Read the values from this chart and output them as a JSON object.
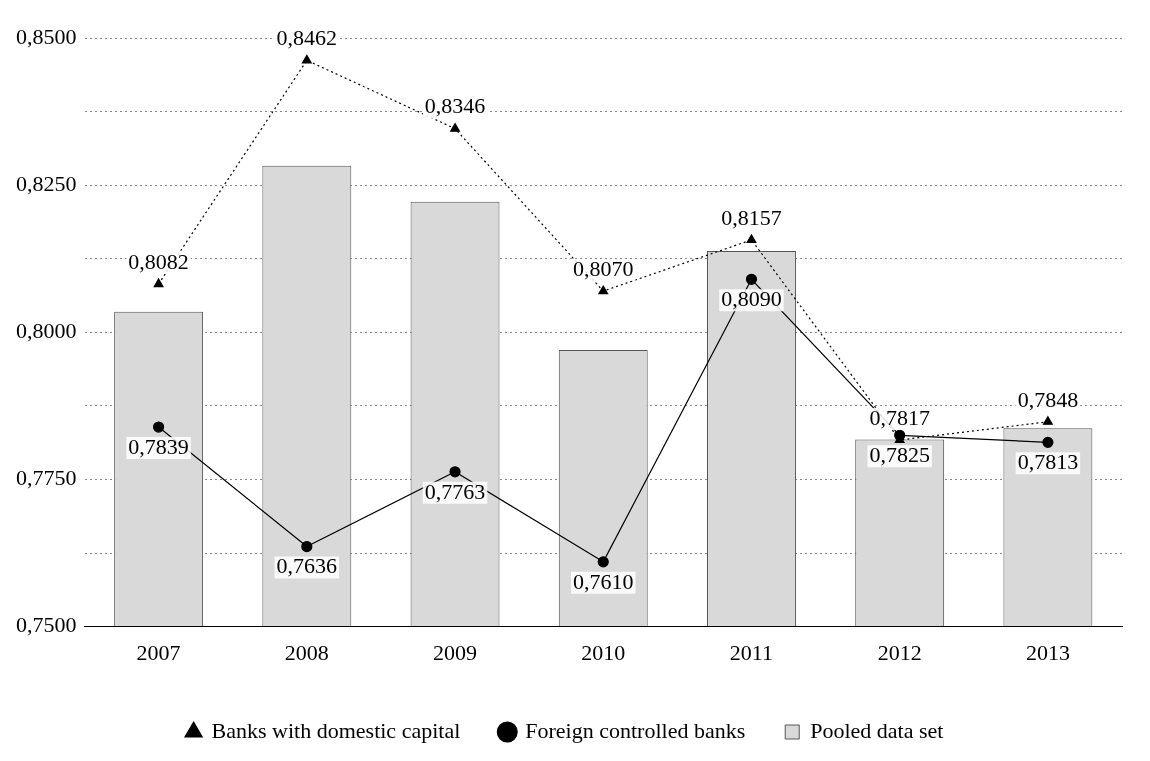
{
  "chart_data": {
    "type": "bar",
    "categories": [
      "2007",
      "2008",
      "2009",
      "2010",
      "2011",
      "2012",
      "2013"
    ],
    "series": [
      {
        "name": "Banks with domestic capital",
        "type": "line",
        "color": "#000000",
        "marker": "triangle",
        "line_style": "dotted",
        "values": [
          0.8082,
          0.8462,
          0.8346,
          0.807,
          0.8157,
          0.7817,
          0.7848
        ],
        "value_labels": [
          "0,8082",
          "0,8462",
          "0,8346",
          "0,8070",
          "0,8157",
          "0,7817",
          "0,7848"
        ]
      },
      {
        "name": "Foreign controlled banks",
        "type": "line",
        "color": "#000000",
        "marker": "circle",
        "line_style": "solid",
        "values": [
          0.7839,
          0.7636,
          0.7763,
          0.761,
          0.809,
          0.7825,
          0.7813
        ],
        "value_labels": [
          "0,7839",
          "0,7636",
          "0,7763",
          "0,7610",
          "0,8090",
          "0,7825",
          "0,7813"
        ]
      },
      {
        "name": "Pooled data set",
        "color": "#d9d9d9",
        "values": [
          0.8035,
          0.8283,
          0.8222,
          0.797,
          0.8138,
          0.7818,
          0.7837
        ]
      }
    ],
    "ylim": [
      0.75,
      0.85
    ],
    "yticks": [
      {
        "value": 0.75,
        "label": "0,7500"
      },
      {
        "value": 0.7625,
        "label": null
      },
      {
        "value": 0.775,
        "label": "0,7750"
      },
      {
        "value": 0.7875,
        "label": null
      },
      {
        "value": 0.8,
        "label": "0,8000"
      },
      {
        "value": 0.8125,
        "label": null
      },
      {
        "value": 0.825,
        "label": "0,8250"
      },
      {
        "value": 0.8375,
        "label": null
      },
      {
        "value": 0.85,
        "label": "0,8500"
      }
    ],
    "grid": "y",
    "legend": "bottom"
  }
}
